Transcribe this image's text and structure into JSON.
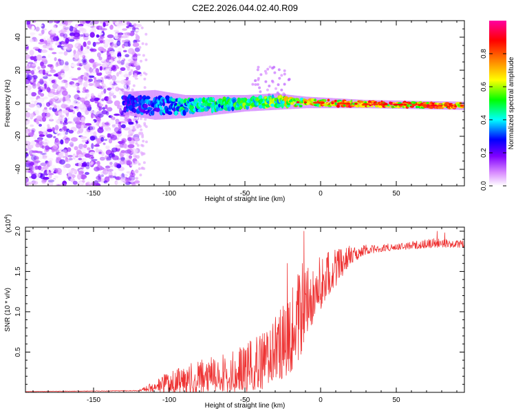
{
  "title": "C2E2.2026.044.02.40.R09",
  "chart_data": [
    {
      "type": "heatmap",
      "title": "C2E2.2026.044.02.40.R09",
      "xlabel": "Height of straight line (km)",
      "ylabel": "Frequency (Hz)",
      "xlim": [
        -195,
        95
      ],
      "ylim": [
        -50,
        50
      ],
      "x_ticks": [
        -150,
        -100,
        -50,
        0,
        50
      ],
      "y_ticks": [
        -40,
        -20,
        0,
        20,
        40
      ],
      "colorbar": {
        "label": "Normalized spectral amplitude",
        "range": [
          0,
          1
        ],
        "ticks": [
          0.0,
          0.2,
          0.4,
          0.6,
          0.8
        ],
        "colors": [
          "#ffffff",
          "#d98cff",
          "#8000ff",
          "#0000ff",
          "#00ffff",
          "#00ff00",
          "#ffff00",
          "#ff8000",
          "#ff0000",
          "#ff00a0"
        ]
      },
      "noise_region_x": [
        -195,
        -120
      ],
      "signal_band": [
        {
          "x": -130,
          "center": 0,
          "halfwidth": 7,
          "amp": 0.3
        },
        {
          "x": -110,
          "center": -1,
          "halfwidth": 9,
          "amp": 0.35
        },
        {
          "x": -90,
          "center": -2,
          "halfwidth": 7,
          "amp": 0.45
        },
        {
          "x": -70,
          "center": -1,
          "halfwidth": 6,
          "amp": 0.5
        },
        {
          "x": -50,
          "center": 0,
          "halfwidth": 5,
          "amp": 0.55
        },
        {
          "x": -30,
          "center": 1,
          "halfwidth": 5,
          "amp": 0.6
        },
        {
          "x": -10,
          "center": 0.5,
          "halfwidth": 3.5,
          "amp": 0.75
        },
        {
          "x": 10,
          "center": 0,
          "halfwidth": 3,
          "amp": 0.85
        },
        {
          "x": 30,
          "center": -0.5,
          "halfwidth": 2.5,
          "amp": 0.85
        },
        {
          "x": 60,
          "center": -1,
          "halfwidth": 2.5,
          "amp": 0.85
        },
        {
          "x": 92,
          "center": -1.5,
          "halfwidth": 2.5,
          "amp": 0.95
        }
      ]
    },
    {
      "type": "line",
      "xlabel": "Height of straight line (km)",
      "ylabel": "SNR (10 * v/v)",
      "y_scale_label": "(x10",
      "y_scale_exp": "4",
      "y_scale_close": ")",
      "xlim": [
        -195,
        95
      ],
      "ylim": [
        0,
        2.05
      ],
      "x_ticks": [
        -150,
        -100,
        -50,
        0,
        50
      ],
      "y_ticks": [
        0.5,
        1.0,
        1.5,
        2.0
      ],
      "y_tick_labels": [
        "0.5",
        "1.0",
        "1.5",
        "2.0"
      ],
      "series": [
        {
          "name": "SNR",
          "color": "#ee3333",
          "envelope": [
            {
              "x": -195,
              "base": 0.01,
              "noise": 0.005
            },
            {
              "x": -120,
              "base": 0.02,
              "noise": 0.01
            },
            {
              "x": -115,
              "base": 0.04,
              "noise": 0.03
            },
            {
              "x": -100,
              "base": 0.1,
              "noise": 0.12
            },
            {
              "x": -80,
              "base": 0.15,
              "noise": 0.18
            },
            {
              "x": -60,
              "base": 0.18,
              "noise": 0.22
            },
            {
              "x": -40,
              "base": 0.3,
              "noise": 0.3
            },
            {
              "x": -25,
              "base": 0.5,
              "noise": 0.4
            },
            {
              "x": -15,
              "base": 0.8,
              "noise": 0.5
            },
            {
              "x": -10,
              "base": 1.0,
              "noise": 0.4
            },
            {
              "x": 0,
              "base": 1.3,
              "noise": 0.3
            },
            {
              "x": 10,
              "base": 1.5,
              "noise": 0.2
            },
            {
              "x": 20,
              "base": 1.68,
              "noise": 0.1
            },
            {
              "x": 30,
              "base": 1.76,
              "noise": 0.05
            },
            {
              "x": 50,
              "base": 1.8,
              "noise": 0.04
            },
            {
              "x": 75,
              "base": 1.84,
              "noise": 0.05
            },
            {
              "x": 95,
              "base": 1.83,
              "noise": 0.04
            }
          ],
          "peaks": [
            {
              "x": -11,
              "y": 2.0
            },
            {
              "x": -12,
              "y": 1.6
            },
            {
              "x": -22,
              "y": 1.6
            },
            {
              "x": -14,
              "y": 1.45
            },
            {
              "x": -5,
              "y": 1.5
            },
            {
              "x": -3,
              "y": 1.3
            },
            {
              "x": 2,
              "y": 1.45
            },
            {
              "x": 8,
              "y": 1.6
            },
            {
              "x": 77,
              "y": 2.0
            },
            {
              "x": 82,
              "y": 1.98
            }
          ]
        }
      ]
    }
  ]
}
